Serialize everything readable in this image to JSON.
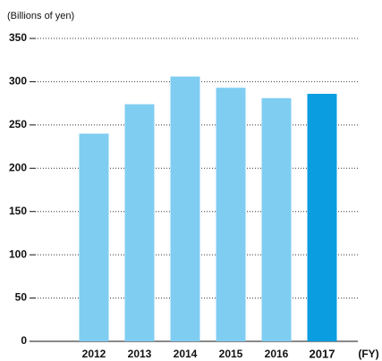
{
  "chart_data": {
    "type": "bar",
    "unit_label": "(Billions of yen)",
    "x_label": "(FY)",
    "categories": [
      "2012",
      "2013",
      "2014",
      "2015",
      "2016",
      "2017"
    ],
    "values": [
      240,
      274,
      306,
      293,
      281,
      286
    ],
    "colors": [
      "#80cdf2",
      "#80cdf2",
      "#80cdf2",
      "#80cdf2",
      "#80cdf2",
      "#0a9de0"
    ],
    "bold_category_index": 5,
    "ylim": [
      0,
      350
    ],
    "yticks": [
      0,
      50,
      100,
      150,
      200,
      250,
      300,
      350
    ],
    "grid": true
  }
}
